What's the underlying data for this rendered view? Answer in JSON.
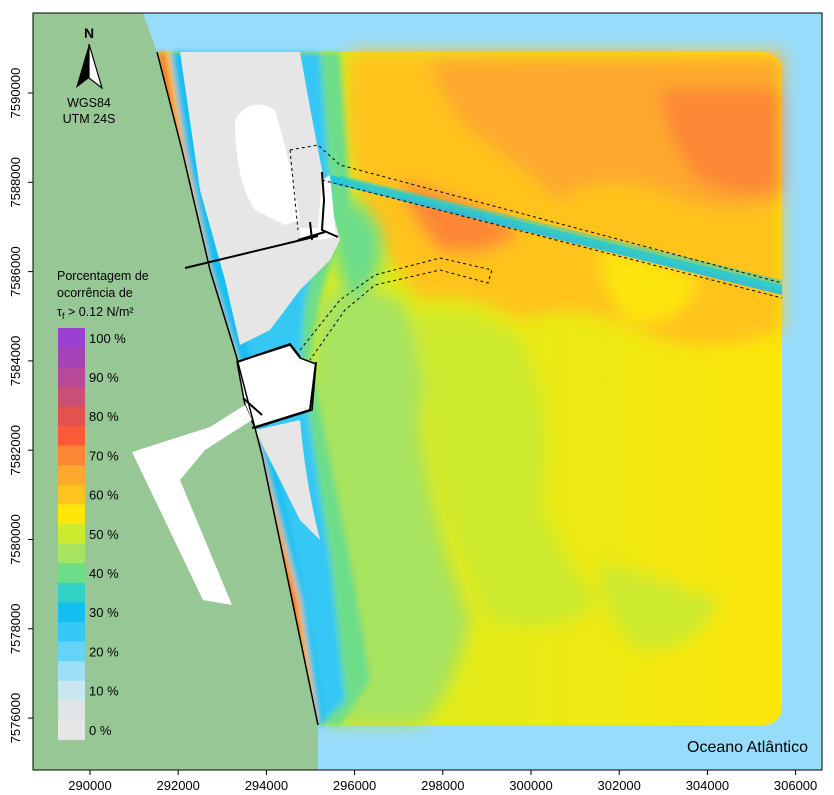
{
  "map": {
    "north_letter": "N",
    "crs_line1": "WGS84",
    "crs_line2": "UTM 24S",
    "ocean_label": "Oceano Atlântico",
    "legend": {
      "title_line1": "Porcentagem de",
      "title_line2": "ocorrência de",
      "title_line3_prefix": "τ",
      "title_line3_sub": "f",
      "title_line3_suffix": " > 0.12 N/m²",
      "classes": [
        {
          "label": "100 %",
          "color": "#9a3fd0"
        },
        {
          "label": "",
          "color": "#a443b8"
        },
        {
          "label": "90 %",
          "color": "#b84898"
        },
        {
          "label": "",
          "color": "#c94f74"
        },
        {
          "label": "80 %",
          "color": "#e4524f"
        },
        {
          "label": "",
          "color": "#fb5a37"
        },
        {
          "label": "70 %",
          "color": "#fd8734"
        },
        {
          "label": "",
          "color": "#fda82f"
        },
        {
          "label": "60 %",
          "color": "#ffc31f"
        },
        {
          "label": "",
          "color": "#fde60a"
        },
        {
          "label": "50 %",
          "color": "#cdea2f"
        },
        {
          "label": "",
          "color": "#a7e35f"
        },
        {
          "label": "40 %",
          "color": "#6ddd8a"
        },
        {
          "label": "",
          "color": "#31d2c3"
        },
        {
          "label": "30 %",
          "color": "#13bff0"
        },
        {
          "label": "",
          "color": "#35c8f5"
        },
        {
          "label": "20 %",
          "color": "#65d3f6"
        },
        {
          "label": "",
          "color": "#9ddff5"
        },
        {
          "label": "10 %",
          "color": "#c9e7f0"
        },
        {
          "label": "",
          "color": "#dfe4e7"
        },
        {
          "label": "0 %",
          "color": "#e6e6e6"
        }
      ]
    },
    "x_ticks": [
      "290000",
      "292000",
      "294000",
      "296000",
      "298000",
      "300000",
      "302000",
      "304000",
      "306000"
    ],
    "y_ticks": [
      "7590000",
      "7588000",
      "7586000",
      "7584000",
      "7582000",
      "7580000",
      "7578000",
      "7576000"
    ],
    "colors": {
      "land": "#98c796",
      "ocean": "#98dcfb",
      "dry": "#e6e6e6",
      "port": "#ffffff"
    }
  }
}
